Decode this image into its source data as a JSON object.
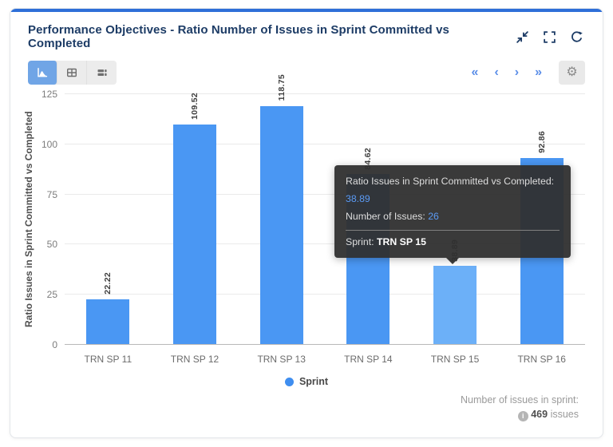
{
  "header": {
    "title": "Performance Objectives - Ratio Number of Issues in Sprint Committed vs Completed",
    "window_icons": [
      "collapse-icon",
      "fullscreen-icon",
      "refresh-icon"
    ]
  },
  "toolbar": {
    "view_buttons": [
      "chart-view",
      "table-view",
      "list-view"
    ],
    "active_view": "chart-view",
    "pagination": {
      "first": "«",
      "prev": "‹",
      "next": "›",
      "last": "»"
    },
    "settings_icon": "gear-icon",
    "settings_glyph": "⚙"
  },
  "chart_data": {
    "type": "bar",
    "categories": [
      "TRN SP 11",
      "TRN SP 12",
      "TRN SP 13",
      "TRN SP 14",
      "TRN SP 15",
      "TRN SP 16"
    ],
    "values": [
      22.22,
      109.52,
      118.75,
      84.62,
      38.89,
      92.86
    ],
    "value_labels": [
      "22.22",
      "109.52",
      "118.75",
      "84.62",
      "38.89",
      "92.86"
    ],
    "highlighted_index": 4,
    "highlighted_category": "TRN SP 15",
    "title": "",
    "xlabel": "",
    "ylabel": "Ratio Issues in Sprint Committed vs Completed",
    "yticks": [
      0,
      25,
      50,
      75,
      100,
      125
    ],
    "ylim": [
      0,
      125
    ],
    "grid": "horizontal",
    "legend_label": "Sprint",
    "legend_position": "bottom",
    "bar_color": "#4a97f3",
    "highlight_bar_color": "#6cb0f8",
    "legend_color": "#3f8ef0"
  },
  "tooltip": {
    "line1_label": "Ratio Issues in Sprint Committed vs Completed:",
    "line1_value": "38.89",
    "line2_label": "Number of Issues:",
    "line2_value": "26",
    "line3_label": "Sprint:",
    "line3_value": "TRN SP 15"
  },
  "footer": {
    "label": "Number of issues in sprint:",
    "count": "469",
    "unit": "issues"
  }
}
